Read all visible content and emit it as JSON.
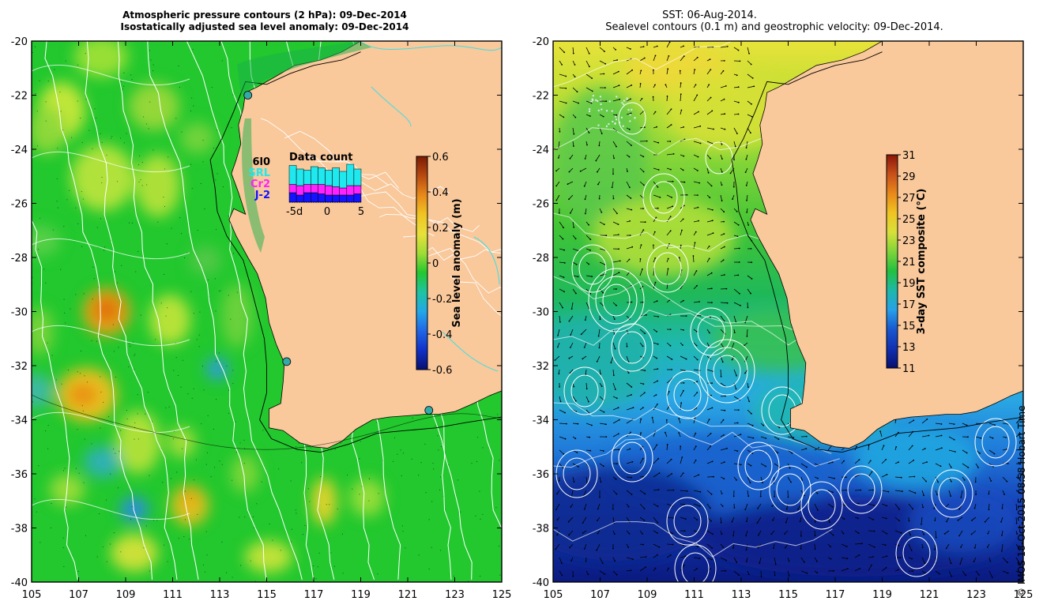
{
  "left_panel": {
    "title_line1": "Atmospheric pressure contours (2 hPa): 09-Dec-2014",
    "title_line2": "Isostatically adjusted sea level anomaly: 09-Dec-2014",
    "y_ticks": [
      "-20",
      "-22",
      "-24",
      "-26",
      "-28",
      "-30",
      "-32",
      "-34",
      "-36",
      "-38",
      "-40"
    ],
    "x_ticks": [
      "105",
      "107",
      "109",
      "111",
      "113",
      "115",
      "117",
      "119",
      "121",
      "123",
      "125"
    ],
    "colorbar": {
      "label": "Sea level anomaly (m)",
      "ticks": [
        "0.6",
        "0.4",
        "0.2",
        "0",
        "-0.2",
        "-0.4",
        "-0.6"
      ]
    },
    "data_count": {
      "title": "Data count",
      "legend": [
        {
          "label": "6l0",
          "color": "#000000"
        },
        {
          "label": "SRL",
          "color": "#1fe8ee"
        },
        {
          "label": "Cr2",
          "color": "#ff21ff"
        },
        {
          "label": "J-2",
          "color": "#1313ff"
        }
      ],
      "x_ticks": [
        "-5d",
        "0",
        "5"
      ],
      "stacks": [
        [
          0.16,
          0.06,
          0.07,
          0.08
        ],
        [
          0.14,
          0.08,
          0.08,
          0.06
        ],
        [
          0.12,
          0.06,
          0.07,
          0.08
        ],
        [
          0.15,
          0.06,
          0.07,
          0.08
        ],
        [
          0.14,
          0.07,
          0.08,
          0.07
        ],
        [
          0.13,
          0.07,
          0.08,
          0.06
        ],
        [
          0.16,
          0.07,
          0.07,
          0.06
        ],
        [
          0.14,
          0.08,
          0.06,
          0.06
        ],
        [
          0.18,
          0.06,
          0.08,
          0.06
        ],
        [
          0.14,
          0.08,
          0.07,
          0.07
        ]
      ]
    },
    "stations": [
      {
        "lon": 114.2,
        "lat": -22.0
      },
      {
        "lon": 115.85,
        "lat": -31.85
      },
      {
        "lon": 121.9,
        "lat": -33.65
      }
    ]
  },
  "right_panel": {
    "title_line1": "SST: 06-Aug-2014.",
    "title_line2": "Sealevel contours (0.1 m) and geostrophic velocity: 09-Dec-2014.",
    "y_ticks": [
      "-20",
      "-22",
      "-24",
      "-26",
      "-28",
      "-30",
      "-32",
      "-34",
      "-36",
      "-38",
      "-40"
    ],
    "x_ticks": [
      "105",
      "107",
      "109",
      "111",
      "113",
      "115",
      "117",
      "119",
      "121",
      "123",
      "125"
    ],
    "colorbar": {
      "label": "3-day SST composite (°C)",
      "ticks": [
        "31",
        "29",
        "27",
        "25",
        "23",
        "21",
        "19",
        "17",
        "15",
        "13",
        "11"
      ]
    }
  },
  "credit": "© IMOS 18-Oct-2015 08:58 Hobart Time",
  "colors": {
    "land": "#f9c89b",
    "ocean_green": "#22c82e",
    "coast": "#000000",
    "rivers": "#3ddfe6",
    "contours": "#ffffff"
  }
}
